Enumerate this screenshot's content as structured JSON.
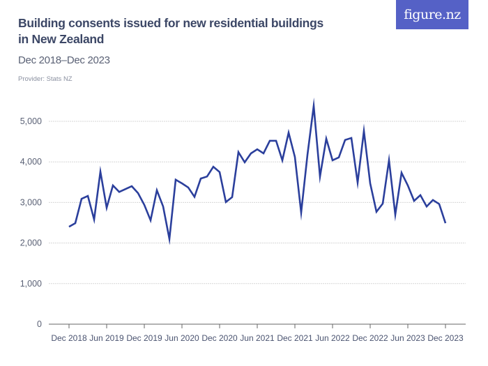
{
  "header": {
    "title": "Building consents issued for new residential buildings in New Zealand",
    "subtitle": "Dec 2018–Dec 2023",
    "provider": "Provider: Stats NZ",
    "logo": "figure.nz"
  },
  "colors": {
    "line": "#2b3f9c",
    "logo_bg": "#5561c6",
    "title": "#3c4766",
    "grid": "#d6d6d6",
    "axis": "#666666"
  },
  "chart_data": {
    "type": "line",
    "title": "Building consents issued for new residential buildings in New Zealand",
    "subtitle": "Dec 2018–Dec 2023",
    "xlabel": "",
    "ylabel": "",
    "ylim": [
      0,
      5000
    ],
    "grid": true,
    "yticks": [
      0,
      1000,
      2000,
      3000,
      4000,
      5000
    ],
    "ytick_labels": [
      "0",
      "1,000",
      "2,000",
      "3,000",
      "4,000",
      "5,000"
    ],
    "xtick_labels": [
      "Dec 2018",
      "Jun 2019",
      "Dec 2019",
      "Jun 2020",
      "Dec 2020",
      "Jun 2021",
      "Dec 2021",
      "Jun 2022",
      "Dec 2022",
      "Jun 2023",
      "Dec 2023"
    ],
    "xtick_month_index": [
      0,
      6,
      12,
      18,
      24,
      30,
      36,
      42,
      48,
      54,
      60
    ],
    "x_start": "Dec 2018",
    "x_end": "Dec 2023",
    "series": [
      {
        "name": "Building consents",
        "values": [
          2400,
          2490,
          3090,
          3160,
          2580,
          3760,
          2870,
          3420,
          3260,
          3330,
          3400,
          3230,
          2940,
          2560,
          3300,
          2900,
          2100,
          3560,
          3470,
          3370,
          3140,
          3590,
          3640,
          3880,
          3750,
          3010,
          3130,
          4240,
          3990,
          4210,
          4310,
          4210,
          4520,
          4520,
          4040,
          4720,
          4120,
          2750,
          4170,
          5380,
          3640,
          4570,
          4040,
          4110,
          4540,
          4590,
          3490,
          4760,
          3470,
          2770,
          2970,
          4040,
          2700,
          3730,
          3420,
          3040,
          3180,
          2900,
          3060,
          2960,
          2490
        ]
      }
    ]
  }
}
